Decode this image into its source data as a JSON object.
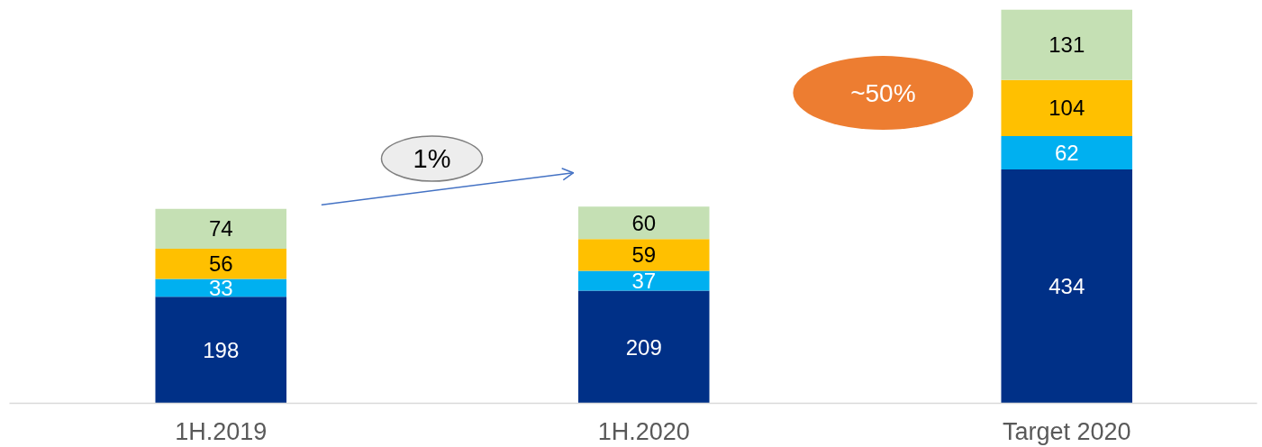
{
  "chart_data": {
    "type": "bar",
    "stacked": true,
    "categories": [
      "1H.2019",
      "1H.2020",
      "Target 2020"
    ],
    "series": [
      {
        "color": "#003087",
        "values": [
          198,
          209,
          434
        ]
      },
      {
        "color": "#00B0F0",
        "values": [
          33,
          37,
          62
        ]
      },
      {
        "color": "#FFC000",
        "values": [
          56,
          59,
          104
        ]
      },
      {
        "color": "#C5E0B4",
        "values": [
          74,
          60,
          131
        ]
      }
    ],
    "ylim": [
      0,
      731
    ],
    "tick_labels": "x",
    "data_labels": true,
    "annotations": [
      "1%",
      "~50%"
    ]
  }
}
